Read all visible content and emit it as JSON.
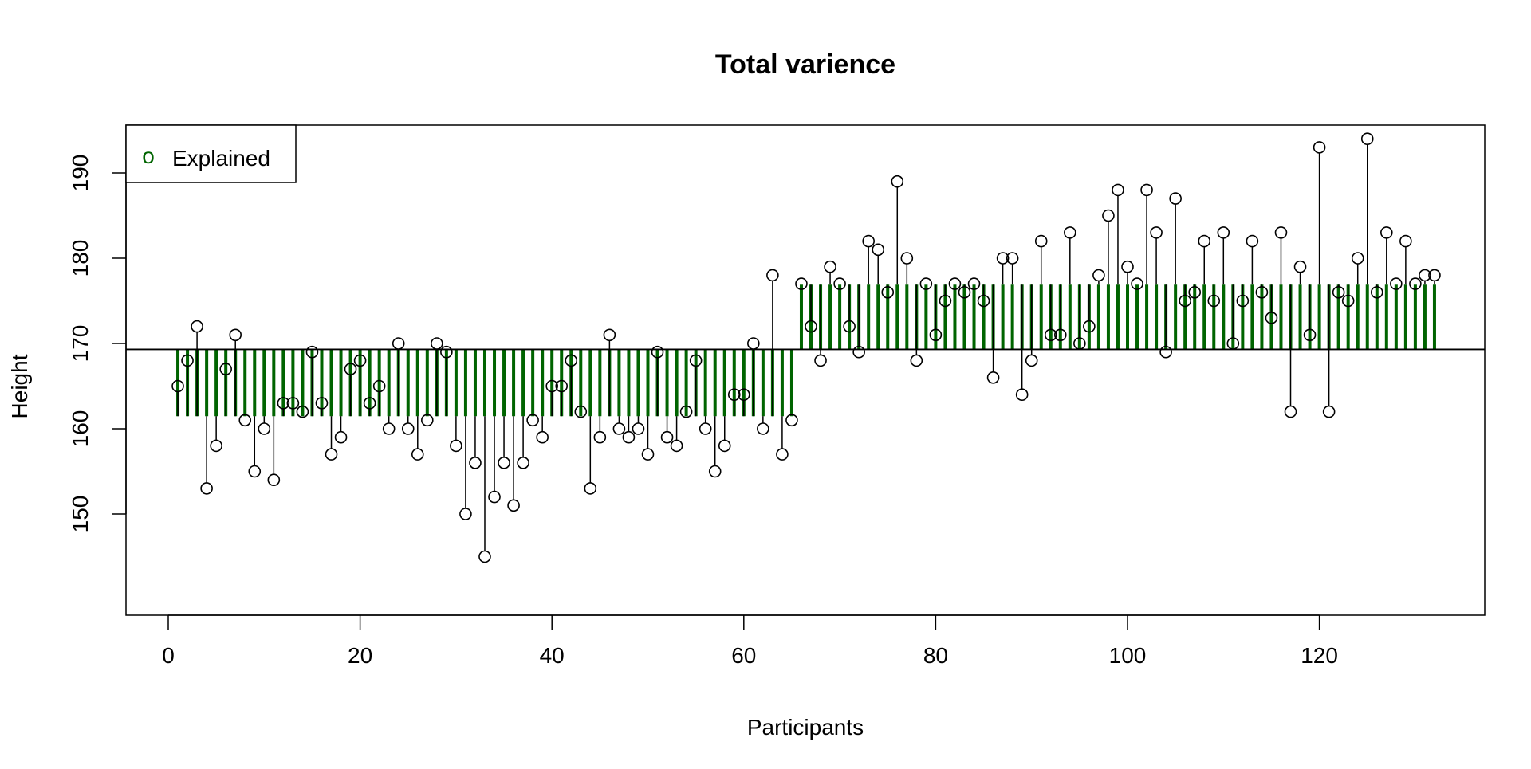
{
  "chart_data": {
    "type": "scatter",
    "title": "Total varience",
    "xlabel": "Participants",
    "ylabel": "Height",
    "xlim": [
      -2,
      135
    ],
    "ylim": [
      143,
      196
    ],
    "xticks": [
      0,
      20,
      40,
      60,
      80,
      100,
      120
    ],
    "yticks": [
      150,
      160,
      170,
      180,
      190
    ],
    "grid": false,
    "legend": {
      "position": "top-left",
      "entries": [
        {
          "label": "Explained",
          "symbol": "o",
          "color": "#006400"
        }
      ]
    },
    "colors": {
      "points": "#000000",
      "explained": "#006400",
      "mean_line": "#000000"
    },
    "groups": [
      {
        "from": 1,
        "to": 65
      },
      {
        "from": 66,
        "to": 132
      }
    ],
    "y": [
      165,
      168,
      172,
      153,
      158,
      167,
      171,
      161,
      155,
      160,
      154,
      163,
      163,
      162,
      169,
      163,
      157,
      159,
      167,
      168,
      163,
      165,
      160,
      170,
      160,
      157,
      161,
      170,
      169,
      158,
      150,
      156,
      145,
      152,
      156,
      151,
      156,
      161,
      159,
      165,
      165,
      168,
      162,
      153,
      159,
      171,
      160,
      159,
      160,
      157,
      169,
      159,
      158,
      162,
      168,
      160,
      155,
      158,
      164,
      164,
      170,
      160,
      178,
      157,
      161,
      177,
      172,
      168,
      179,
      177,
      172,
      169,
      182,
      181,
      176,
      189,
      180,
      168,
      177,
      171,
      175,
      177,
      176,
      177,
      175,
      166,
      180,
      180,
      164,
      168,
      182,
      171,
      171,
      183,
      170,
      172,
      178,
      185,
      188,
      179,
      177,
      188,
      183,
      169,
      187,
      175,
      176,
      182,
      175,
      183,
      170,
      175,
      182,
      176,
      173,
      183,
      162,
      179,
      171,
      193,
      162,
      176,
      175,
      180,
      194,
      176,
      183,
      177,
      182,
      177,
      178,
      178
    ]
  }
}
